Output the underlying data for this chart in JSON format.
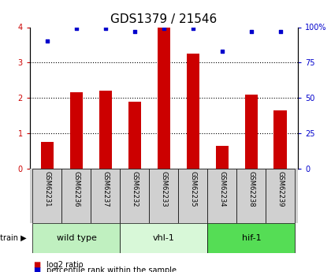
{
  "title": "GDS1379 / 21546",
  "samples": [
    "GSM62231",
    "GSM62236",
    "GSM62237",
    "GSM62232",
    "GSM62233",
    "GSM62235",
    "GSM62234",
    "GSM62238",
    "GSM62239"
  ],
  "log2_ratio": [
    0.75,
    2.15,
    2.2,
    1.9,
    4.0,
    3.25,
    0.65,
    2.1,
    1.65
  ],
  "percentile": [
    90,
    99,
    99,
    97,
    99,
    99,
    83,
    97,
    97
  ],
  "groups": [
    {
      "label": "wild type",
      "start": 0,
      "end": 3,
      "color": "#c0f0c0"
    },
    {
      "label": "vhl-1",
      "start": 3,
      "end": 6,
      "color": "#d8f8d8"
    },
    {
      "label": "hif-1",
      "start": 6,
      "end": 9,
      "color": "#55dd55"
    }
  ],
  "bar_color": "#cc0000",
  "dot_color": "#0000cc",
  "cell_bg": "#d0d0d0",
  "ylim_left": [
    0,
    4
  ],
  "ylim_right": [
    0,
    100
  ],
  "yticks_left": [
    0,
    1,
    2,
    3,
    4
  ],
  "yticks_right": [
    0,
    25,
    50,
    75,
    100
  ],
  "ytick_labels_right": [
    "0",
    "25",
    "50",
    "75",
    "100%"
  ],
  "grid_yticks": [
    1,
    2,
    3
  ],
  "background_color": "#ffffff",
  "bar_width": 0.45,
  "title_fontsize": 11,
  "tick_fontsize": 7,
  "sample_fontsize": 6,
  "group_fontsize": 8,
  "legend_fontsize": 7,
  "strain_fontsize": 7
}
